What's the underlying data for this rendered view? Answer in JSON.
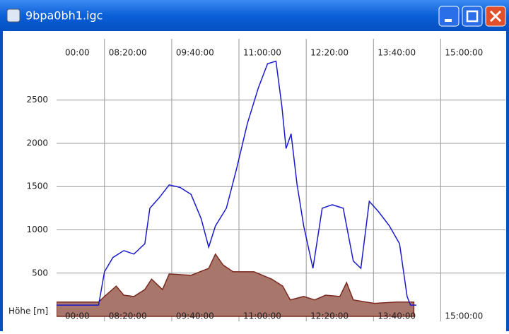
{
  "window": {
    "title": "9bpa0bh1.igc"
  },
  "chart_data": {
    "type": "line",
    "y_label": "Höhe [m]",
    "xlim": [
      443,
      977
    ],
    "xticks": [
      {
        "value": 420,
        "label": "00:00"
      },
      {
        "value": 500,
        "label": "08:20:00"
      },
      {
        "value": 580,
        "label": "09:40:00"
      },
      {
        "value": 660,
        "label": "11:00:00"
      },
      {
        "value": 740,
        "label": "12:20:00"
      },
      {
        "value": 820,
        "label": "13:40:00"
      },
      {
        "value": 900,
        "label": "15:00:00"
      }
    ],
    "ylim": [
      -57,
      3208
    ],
    "yticks": [
      500,
      1000,
      1500,
      2000,
      2500
    ],
    "grid": true,
    "series": [
      {
        "color": "#1a1acc",
        "x": [
          443,
          493,
          500,
          510,
          523,
          535,
          548,
          554,
          565,
          577,
          590,
          603,
          615,
          624,
          632,
          645,
          657,
          670,
          683,
          694,
          704,
          711,
          716,
          722,
          729,
          737,
          748,
          759,
          771,
          784,
          796,
          805,
          815,
          826,
          839,
          851,
          860,
          864,
          871
        ],
        "values": [
          130,
          130,
          515,
          680,
          760,
          720,
          840,
          1250,
          1370,
          1520,
          1490,
          1410,
          1130,
          800,
          1045,
          1250,
          1700,
          2230,
          2640,
          2920,
          2950,
          2430,
          1940,
          2110,
          1530,
          1045,
          555,
          1250,
          1290,
          1250,
          640,
          555,
          1330,
          1210,
          1045,
          840,
          230,
          130,
          130
        ]
      },
      {
        "color": "#a8766a",
        "area": true,
        "x": [
          443,
          493,
          500,
          514,
          523,
          535,
          548,
          556,
          569,
          577,
          603,
          624,
          632,
          641,
          653,
          678,
          699,
          712,
          721,
          737,
          750,
          763,
          780,
          788,
          796,
          821,
          847,
          868
        ],
        "values": [
          165,
          165,
          230,
          350,
          245,
          230,
          310,
          430,
          310,
          490,
          475,
          555,
          720,
          595,
          515,
          515,
          430,
          350,
          190,
          230,
          190,
          245,
          230,
          390,
          190,
          150,
          165,
          165
        ]
      }
    ]
  }
}
